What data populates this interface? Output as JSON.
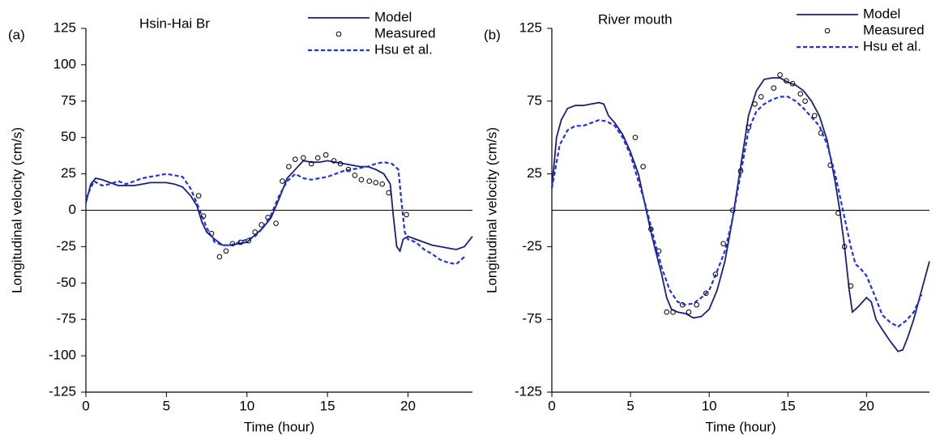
{
  "chart_data": [
    {
      "type": "line",
      "panel_label": "(a)",
      "title": "Hsin-Hai Br",
      "xlabel": "Time (hour)",
      "ylabel": "Longitudinal velocity (cm/s)",
      "xlim": [
        0,
        24
      ],
      "xticks": [
        0,
        5,
        10,
        15,
        20
      ],
      "ylim": [
        -125,
        125
      ],
      "yticks": [
        -125,
        -100,
        -75,
        -50,
        -25,
        0,
        25,
        50,
        75,
        100,
        125
      ],
      "hline": 0,
      "series": [
        {
          "name": "Model",
          "color": "#1b1f7a",
          "style": "solid",
          "x": [
            0,
            0.3,
            0.6,
            1,
            1.5,
            2,
            2.5,
            3,
            3.5,
            4,
            4.5,
            5,
            5.5,
            6,
            6.5,
            6.9,
            7.2,
            7.5,
            8,
            8.5,
            9,
            9.5,
            10,
            10.5,
            11,
            11.5,
            12,
            12.5,
            13,
            13.5,
            14,
            14.5,
            15,
            15.5,
            16,
            16.5,
            17,
            17.5,
            18,
            18.5,
            18.9,
            19.1,
            19.3,
            19.5,
            19.7,
            20,
            20.5,
            21,
            21.5,
            22,
            22.5,
            23,
            23.5,
            24
          ],
          "values": [
            5,
            18,
            22,
            21,
            19,
            17,
            17,
            17,
            18,
            19,
            19,
            19,
            18,
            16,
            10,
            3,
            -8,
            -15,
            -20,
            -24,
            -24,
            -23,
            -22,
            -17,
            -12,
            -5,
            8,
            22,
            28,
            34,
            33,
            33,
            34,
            33,
            32,
            31,
            30,
            30,
            28,
            25,
            18,
            -5,
            -25,
            -28,
            -20,
            -18,
            -20,
            -22,
            -24,
            -25,
            -26,
            -27,
            -25,
            -18
          ]
        },
        {
          "name": "Measured",
          "color": "#000000",
          "style": "markers",
          "x": [
            7,
            7.3,
            7.8,
            8.3,
            8.7,
            9.1,
            9.6,
            10.1,
            10.5,
            10.9,
            11.3,
            11.8,
            12.2,
            12.6,
            13,
            13.5,
            14,
            14.4,
            14.9,
            15.4,
            15.8,
            16.3,
            16.7,
            17.1,
            17.6,
            18,
            18.4,
            18.8,
            19.9
          ],
          "values": [
            10,
            -4,
            -16,
            -32,
            -28,
            -23,
            -22,
            -21,
            -15,
            -10,
            -5,
            -9,
            20,
            30,
            35,
            36,
            32,
            36,
            38,
            34,
            32,
            28,
            24,
            21,
            20,
            19,
            18,
            12,
            -3
          ]
        },
        {
          "name": "Hsu et al.",
          "color": "#2233dd",
          "style": "dashed",
          "x": [
            0,
            0.5,
            1,
            1.5,
            2,
            2.5,
            3,
            3.5,
            4,
            4.5,
            5,
            5.5,
            6,
            6.5,
            7,
            7.5,
            8,
            8.5,
            9,
            9.5,
            10,
            10.5,
            11,
            11.5,
            12,
            12.5,
            13,
            13.5,
            14,
            14.5,
            15,
            15.5,
            16,
            16.5,
            17,
            17.5,
            18,
            18.5,
            19,
            19.4,
            19.6,
            19.8,
            20,
            20.5,
            21,
            21.5,
            22,
            22.5,
            23,
            23.5
          ],
          "values": [
            8,
            20,
            17,
            18,
            20,
            18,
            20,
            22,
            23,
            24,
            25,
            24,
            23,
            15,
            2,
            -12,
            -22,
            -24,
            -24,
            -22,
            -20,
            -18,
            -12,
            -3,
            10,
            20,
            25,
            22,
            21,
            22,
            23,
            25,
            27,
            28,
            29,
            30,
            32,
            33,
            32,
            28,
            5,
            -15,
            -20,
            -22,
            -27,
            -30,
            -34,
            -36,
            -37,
            -32
          ]
        }
      ]
    },
    {
      "type": "line",
      "panel_label": "(b)",
      "title": "River mouth",
      "xlabel": "Time (hour)",
      "ylabel": "Longitudinal velocity (cm/s)",
      "xlim": [
        0,
        24
      ],
      "xticks": [
        0,
        5,
        10,
        15,
        20
      ],
      "ylim": [
        -125,
        125
      ],
      "yticks": [
        -125,
        -75,
        -25,
        25,
        75,
        125
      ],
      "hline": 0,
      "series": [
        {
          "name": "Model",
          "color": "#1b1f7a",
          "style": "solid",
          "x": [
            0,
            0.3,
            0.6,
            1,
            1.5,
            2,
            2.5,
            3,
            3.3,
            3.6,
            4,
            4.5,
            5,
            5.5,
            6,
            6.3,
            6.6,
            7,
            7.3,
            7.6,
            8,
            8.5,
            9,
            9.5,
            10,
            10.5,
            11,
            11.5,
            12,
            12.5,
            13,
            13.5,
            14,
            14.5,
            15,
            15.5,
            16,
            16.5,
            17,
            17.5,
            18,
            18.3,
            18.6,
            18.9,
            19.1,
            19.5,
            20,
            20.3,
            20.6,
            21,
            21.5,
            22,
            22.3,
            22.6,
            23,
            23.5,
            24
          ],
          "values": [
            15,
            50,
            62,
            70,
            72,
            72,
            73,
            74,
            73,
            65,
            60,
            52,
            40,
            25,
            0,
            -15,
            -28,
            -45,
            -60,
            -68,
            -70,
            -71,
            -74,
            -73,
            -68,
            -55,
            -35,
            -5,
            30,
            65,
            82,
            90,
            91,
            91,
            88,
            86,
            82,
            75,
            65,
            48,
            20,
            0,
            -25,
            -55,
            -70,
            -66,
            -60,
            -63,
            -75,
            -82,
            -90,
            -97,
            -96,
            -88,
            -75,
            -55,
            -35
          ]
        },
        {
          "name": "Measured",
          "color": "#000000",
          "style": "markers",
          "x": [
            5.3,
            5.8,
            6.3,
            6.8,
            7.3,
            7.7,
            8.3,
            8.7,
            9.2,
            9.8,
            10.4,
            10.9,
            11.5,
            12,
            12.5,
            12.9,
            13.3,
            14.1,
            14.5,
            14.9,
            15.3,
            15.8,
            16.1,
            16.7,
            17.1,
            17.7,
            18.2,
            18.6,
            19
          ],
          "values": [
            50,
            30,
            -13,
            -28,
            -70,
            -70,
            -65,
            -70,
            -65,
            -57,
            -44,
            -23,
            0,
            27,
            57,
            73,
            78,
            84,
            93,
            89,
            87,
            80,
            75,
            65,
            53,
            31,
            -2,
            -25,
            -52
          ]
        },
        {
          "name": "Hsu et al.",
          "color": "#2233dd",
          "style": "dashed",
          "x": [
            0,
            0.5,
            1,
            1.5,
            2,
            2.5,
            3,
            3.5,
            4,
            4.5,
            5,
            5.5,
            6,
            6.5,
            7,
            7.5,
            8,
            8.5,
            9,
            9.5,
            10,
            10.5,
            11,
            11.5,
            12,
            12.5,
            13,
            13.5,
            14,
            14.5,
            15,
            15.5,
            16,
            16.5,
            17,
            17.5,
            18,
            18.5,
            19,
            19.3,
            19.6,
            20,
            20.5,
            21,
            21.5,
            22,
            22.5,
            23,
            23.5
          ],
          "values": [
            15,
            45,
            55,
            58,
            58,
            60,
            62,
            61,
            58,
            50,
            38,
            20,
            2,
            -20,
            -40,
            -55,
            -63,
            -65,
            -64,
            -60,
            -55,
            -42,
            -28,
            -5,
            25,
            55,
            68,
            73,
            76,
            78,
            78,
            75,
            70,
            64,
            58,
            45,
            25,
            0,
            -25,
            -37,
            -40,
            -45,
            -58,
            -72,
            -77,
            -80,
            -76,
            -70,
            -58
          ]
        }
      ]
    }
  ]
}
